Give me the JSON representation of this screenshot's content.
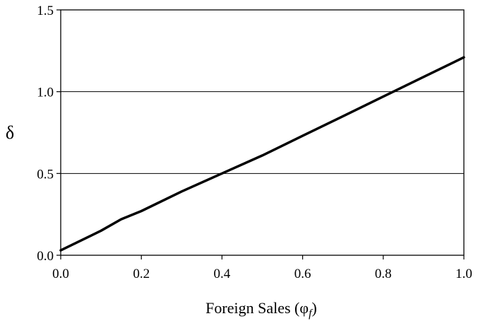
{
  "chart_data": {
    "type": "line",
    "title": "",
    "xlabel": "Foreign Sales (φ",
    "xlabel_subscript": "f",
    "xlabel_suffix": ")",
    "ylabel": "δ",
    "xlim": [
      0,
      1
    ],
    "ylim": [
      0,
      1.5
    ],
    "x_ticks": [
      "0.0",
      "0.2",
      "0.4",
      "0.6",
      "0.8",
      "1.0"
    ],
    "y_ticks": [
      "0.0",
      "0.5",
      "1.0",
      "1.5"
    ],
    "grid": "horizontal",
    "legend": "none",
    "series": [
      {
        "x": [
          0.0,
          0.1,
          0.15,
          0.2,
          0.3,
          0.4,
          0.5,
          0.6,
          0.7,
          0.8,
          0.9,
          1.0
        ],
        "y": [
          0.03,
          0.15,
          0.22,
          0.27,
          0.39,
          0.5,
          0.61,
          0.73,
          0.85,
          0.97,
          1.09,
          1.21
        ]
      }
    ],
    "colors": {
      "line": "#000000",
      "grid": "#000000",
      "axis": "#000000"
    }
  }
}
